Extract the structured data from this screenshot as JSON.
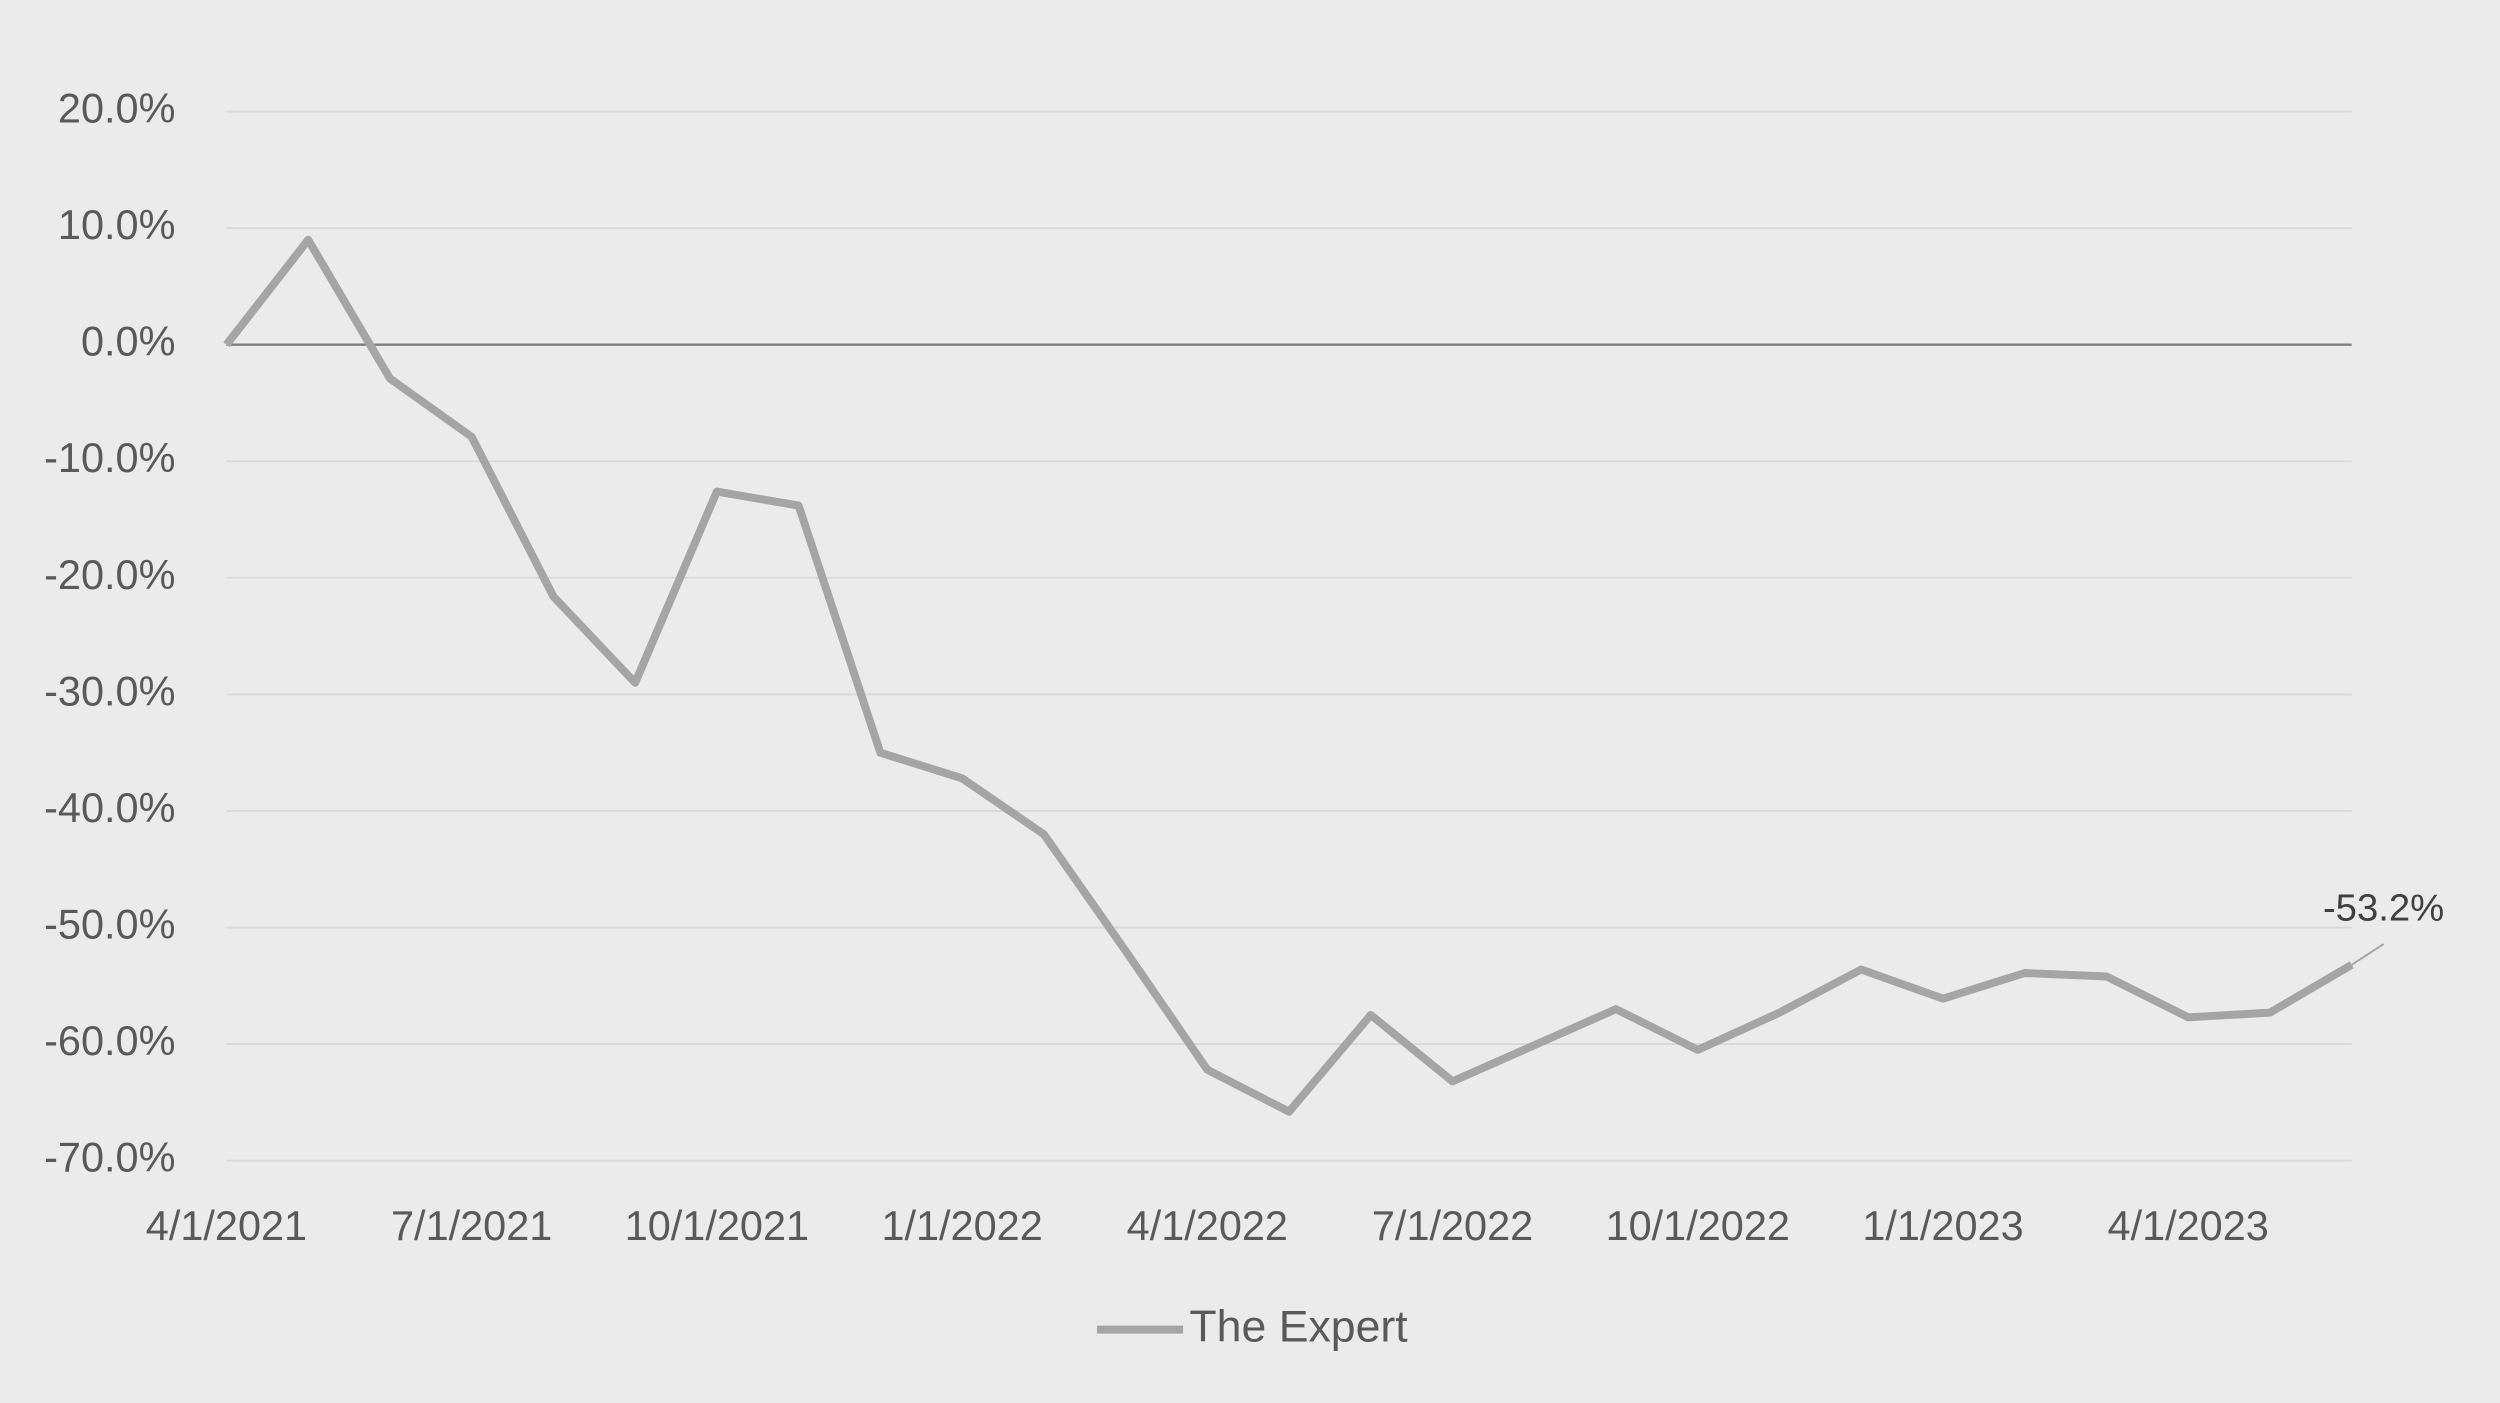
{
  "chart_data": {
    "type": "line",
    "categories": [
      "4/1/2021",
      null,
      null,
      "7/1/2021",
      null,
      null,
      "10/1/2021",
      null,
      null,
      "1/1/2022",
      null,
      null,
      "4/1/2022",
      null,
      null,
      "7/1/2022",
      null,
      null,
      "10/1/2022",
      null,
      null,
      "1/1/2023",
      null,
      null,
      "4/1/2023",
      null,
      null
    ],
    "series": [
      {
        "name": "The Expert",
        "color": "#a5a5a5",
        "values": [
          0,
          9.0,
          -2.9,
          -7.9,
          -21.6,
          -29.0,
          -12.6,
          -13.8,
          -35.0,
          -37.2,
          -42.0,
          -52.0,
          -62.2,
          -65.8,
          -57.5,
          -63.2,
          -60.1,
          -57.0,
          -60.5,
          -57.3,
          -53.6,
          -56.1,
          -53.9,
          -54.2,
          -57.7,
          -57.3,
          -53.2
        ],
        "value_labels": [
          null,
          null,
          null,
          null,
          null,
          null,
          null,
          null,
          null,
          null,
          null,
          null,
          null,
          null,
          null,
          null,
          null,
          null,
          null,
          null,
          null,
          null,
          null,
          null,
          null,
          null,
          "-53.2%"
        ]
      }
    ],
    "ylim": [
      -70,
      20
    ],
    "yticks": [
      {
        "value": -70,
        "label": "-70.0%"
      },
      {
        "value": -60,
        "label": "-60.0%"
      },
      {
        "value": -50,
        "label": "-50.0%"
      },
      {
        "value": -40,
        "label": "-40.0%"
      },
      {
        "value": -30,
        "label": "-30.0%"
      },
      {
        "value": -20,
        "label": "-20.0%"
      },
      {
        "value": -10,
        "label": "-10.0%"
      },
      {
        "value": 0,
        "label": "0.0%"
      },
      {
        "value": 10,
        "label": "10.0%"
      },
      {
        "value": 20,
        "label": "20.0%"
      }
    ],
    "grid": true,
    "legend": "bottom"
  }
}
